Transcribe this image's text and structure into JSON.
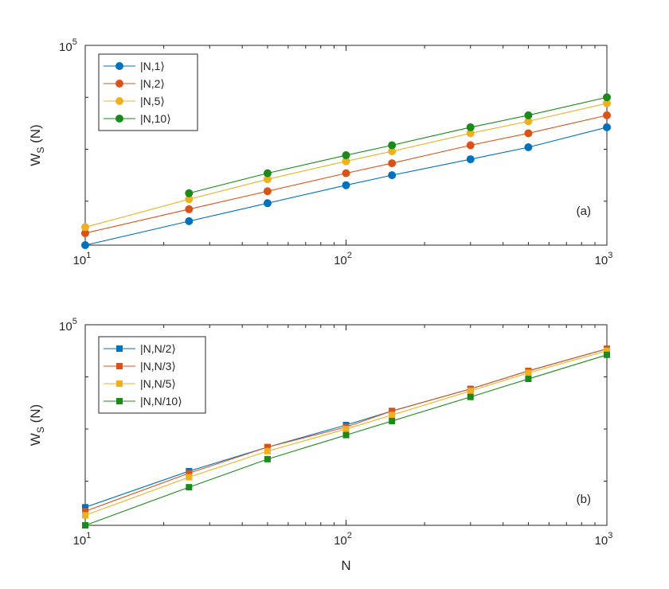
{
  "chart_data": [
    {
      "type": "line",
      "panel_label": "(a)",
      "xscale": "log",
      "xlim": [
        10,
        1000
      ],
      "xticks": [
        {
          "value": 10,
          "base": "10",
          "exp": "1"
        },
        {
          "value": 100,
          "base": "10",
          "exp": "2"
        },
        {
          "value": 1000,
          "base": "10",
          "exp": "3"
        }
      ],
      "ytop_tick": {
        "base": "10",
        "exp": "5"
      },
      "ylabel": {
        "main": "W",
        "sub": "S",
        "rest": " (N)"
      },
      "xlabel": "",
      "legend_position": "top-left",
      "marker": "circle",
      "series": [
        {
          "name": "|N,1⟩",
          "color": "#0072BD",
          "x": [
            10,
            25,
            50,
            100,
            150,
            300,
            500,
            1000
          ],
          "y": [
            0.0,
            0.12,
            0.21,
            0.3,
            0.35,
            0.43,
            0.49,
            0.59
          ]
        },
        {
          "name": "|N,2⟩",
          "color": "#D95319",
          "x": [
            10,
            25,
            50,
            100,
            150,
            300,
            500,
            1000
          ],
          "y": [
            0.06,
            0.18,
            0.27,
            0.36,
            0.41,
            0.5,
            0.56,
            0.65
          ]
        },
        {
          "name": "|N,5⟩",
          "color": "#EDB120",
          "x": [
            10,
            25,
            50,
            100,
            150,
            300,
            500,
            1000
          ],
          "y": [
            0.09,
            0.23,
            0.33,
            0.42,
            0.47,
            0.56,
            0.62,
            0.71
          ]
        },
        {
          "name": "|N,10⟩",
          "color": "#1A8A1A",
          "x": [
            25,
            50,
            100,
            150,
            300,
            500,
            1000
          ],
          "y": [
            0.26,
            0.36,
            0.45,
            0.5,
            0.59,
            0.65,
            0.74
          ]
        }
      ]
    },
    {
      "type": "line",
      "panel_label": "(b)",
      "xscale": "log",
      "xlim": [
        10,
        1000
      ],
      "xticks": [
        {
          "value": 10,
          "base": "10",
          "exp": "1"
        },
        {
          "value": 100,
          "base": "10",
          "exp": "2"
        },
        {
          "value": 1000,
          "base": "10",
          "exp": "3"
        }
      ],
      "ytop_tick": {
        "base": "10",
        "exp": "5"
      },
      "ylabel": {
        "main": "W",
        "sub": "S",
        "rest": " (N)"
      },
      "xlabel": "N",
      "legend_position": "top-left",
      "marker": "square",
      "series": [
        {
          "name": "|N,N/2⟩",
          "color": "#0072BD",
          "x": [
            10,
            25,
            50,
            100,
            150,
            300,
            500,
            1000
          ],
          "y": [
            0.09,
            0.27,
            0.39,
            0.5,
            0.57,
            0.68,
            0.77,
            0.88
          ]
        },
        {
          "name": "|N,N/3⟩",
          "color": "#D95319",
          "x": [
            10,
            25,
            50,
            100,
            150,
            300,
            500,
            1000
          ],
          "y": [
            0.07,
            0.26,
            0.39,
            0.49,
            0.57,
            0.68,
            0.77,
            0.88
          ]
        },
        {
          "name": "|N,N/5⟩",
          "color": "#EDB120",
          "x": [
            10,
            25,
            50,
            100,
            150,
            300,
            500,
            1000
          ],
          "y": [
            0.05,
            0.24,
            0.37,
            0.48,
            0.55,
            0.67,
            0.76,
            0.87
          ]
        },
        {
          "name": "|N,N/10⟩",
          "color": "#1A8A1A",
          "x": [
            10,
            25,
            50,
            100,
            150,
            300,
            500,
            1000
          ],
          "y": [
            0.0,
            0.19,
            0.33,
            0.45,
            0.52,
            0.64,
            0.73,
            0.85
          ]
        }
      ]
    }
  ]
}
